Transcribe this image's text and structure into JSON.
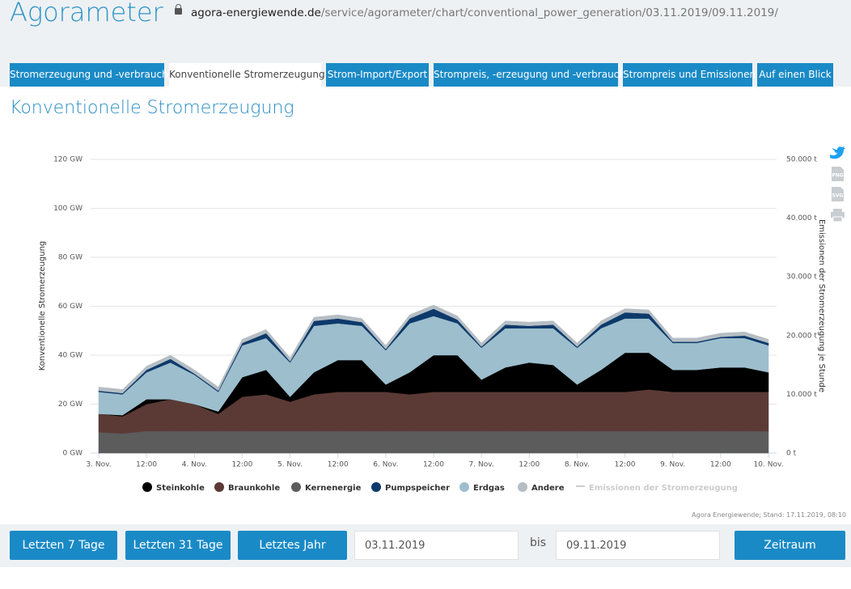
{
  "header": {
    "title": "Agorameter",
    "url_domain": "agora-energiewende.de",
    "url_path": "/service/agorameter/chart/conventional_power_generation/03.11.2019/09.11.2019/"
  },
  "tabs": [
    "Stromerzeugung und -verbrauch",
    "Konventionelle Stromerzeugung",
    "Strom-Import/Export",
    "Strompreis, -erzeugung und -verbrauch",
    "Strompreis und Emissionen",
    "Auf einen Blick"
  ],
  "heading": "Konventionelle Stromerzeugung",
  "export_icons": [
    "PNG",
    "SVG"
  ],
  "chart_data": {
    "type": "area",
    "stacked": true,
    "grid": true,
    "y_label": "Konventionelle Stromerzeugung",
    "y2_label": "Emissionen der Stromerzeugung je Stunde",
    "x": [
      0,
      6,
      12,
      18,
      24,
      30,
      36,
      42,
      48,
      54,
      60,
      66,
      72,
      78,
      84,
      90,
      96,
      102,
      108,
      114,
      120,
      126,
      132,
      138,
      144,
      150,
      156,
      162,
      168
    ],
    "xlim": [
      0,
      168
    ],
    "xticks": [
      {
        "value": 0,
        "label": "3. Nov."
      },
      {
        "value": 12,
        "label": "12:00"
      },
      {
        "value": 24,
        "label": "4. Nov."
      },
      {
        "value": 36,
        "label": "12:00"
      },
      {
        "value": 48,
        "label": "5. Nov."
      },
      {
        "value": 60,
        "label": "12:00"
      },
      {
        "value": 72,
        "label": "6. Nov."
      },
      {
        "value": 84,
        "label": "12:00"
      },
      {
        "value": 96,
        "label": "7. Nov."
      },
      {
        "value": 108,
        "label": "12:00"
      },
      {
        "value": 120,
        "label": "8. Nov."
      },
      {
        "value": 132,
        "label": "12:00"
      },
      {
        "value": 144,
        "label": "9. Nov."
      },
      {
        "value": 156,
        "label": "12:00"
      },
      {
        "value": 168,
        "label": "10. Nov."
      }
    ],
    "ylim": [
      0,
      120
    ],
    "yticks": [
      {
        "value": 0,
        "label": "0 GW"
      },
      {
        "value": 20,
        "label": "20 GW"
      },
      {
        "value": 40,
        "label": "40 GW"
      },
      {
        "value": 60,
        "label": "60 GW"
      },
      {
        "value": 80,
        "label": "80 GW"
      },
      {
        "value": 100,
        "label": "100 GW"
      },
      {
        "value": 120,
        "label": "120 GW"
      }
    ],
    "y2lim": [
      0,
      50000
    ],
    "y2ticks": [
      {
        "value": 0,
        "label": "0 t"
      },
      {
        "value": 10000,
        "label": "10.000 t"
      },
      {
        "value": 20000,
        "label": "20.000 t"
      },
      {
        "value": 30000,
        "label": "30.000 t"
      },
      {
        "value": 40000,
        "label": "40.000 t"
      },
      {
        "value": 50000,
        "label": "50.000 t"
      }
    ],
    "series": [
      {
        "name": "Steinkohle",
        "color": "#000000",
        "values": [
          0,
          0.5,
          2,
          0,
          0,
          1,
          8,
          10,
          2,
          9,
          13,
          13,
          3,
          9,
          15,
          15,
          5,
          10,
          12,
          11,
          3,
          9,
          16,
          15,
          9,
          9,
          10,
          10,
          8
        ]
      },
      {
        "name": "Braunkohle",
        "color": "#5b3a36",
        "values": [
          7.5,
          7,
          11,
          13,
          11,
          7,
          14,
          15,
          12,
          15,
          16,
          16,
          16,
          15,
          16,
          16,
          16,
          16,
          16,
          16,
          16,
          16,
          16,
          17,
          16,
          16,
          16,
          16,
          16
        ]
      },
      {
        "name": "Kernenergie",
        "color": "#5c5c5c",
        "values": [
          8.5,
          8,
          9,
          9,
          9,
          9,
          9,
          9,
          9,
          9,
          9,
          9,
          9,
          9,
          9,
          9,
          9,
          9,
          9,
          9,
          9,
          9,
          9,
          9,
          9,
          9,
          9,
          9,
          9
        ]
      },
      {
        "name": "Pumpspeicher",
        "color": "#0d3a6b",
        "values": [
          0.5,
          0.5,
          1,
          1.5,
          0.5,
          0.5,
          1,
          2,
          0.5,
          2,
          2,
          1.5,
          0.5,
          2,
          3,
          1.5,
          0.5,
          1.5,
          1,
          1.5,
          0.5,
          1.5,
          2.5,
          2,
          0.5,
          0.5,
          0.5,
          1,
          1
        ]
      },
      {
        "name": "Erdgas",
        "color": "#9dbecd",
        "values": [
          9,
          8.5,
          11,
          15,
          12,
          8,
          13,
          13,
          14,
          19,
          15,
          14,
          14,
          20,
          16,
          13,
          13,
          16,
          14,
          15,
          15,
          17,
          14,
          14,
          11,
          11,
          12,
          12,
          11
        ]
      },
      {
        "name": "Andere",
        "color": "#b5bec4",
        "values": [
          1.5,
          1.5,
          1.5,
          1.5,
          1.5,
          1.5,
          1.5,
          1.5,
          1.5,
          1.5,
          1.5,
          1.5,
          1.5,
          1.5,
          1.5,
          1.5,
          1.5,
          1.5,
          1.5,
          1.5,
          1.5,
          1.5,
          1.5,
          1.5,
          1.5,
          1.5,
          1.5,
          1.5,
          1.5
        ]
      }
    ],
    "hidden_series": [
      {
        "name": "Emissionen der Stromerzeugung",
        "color": "#cccccc"
      }
    ]
  },
  "source": "Agora Energiewende; Stand: 17.11.2019, 08:10",
  "controls": {
    "buttons": [
      "Letzten 7 Tage",
      "Letzten 31 Tage",
      "Letztes Jahr"
    ],
    "date_from": "03.11.2019",
    "separator": "bis",
    "date_to": "09.11.2019",
    "submit": "Zeitraum darstellen"
  }
}
